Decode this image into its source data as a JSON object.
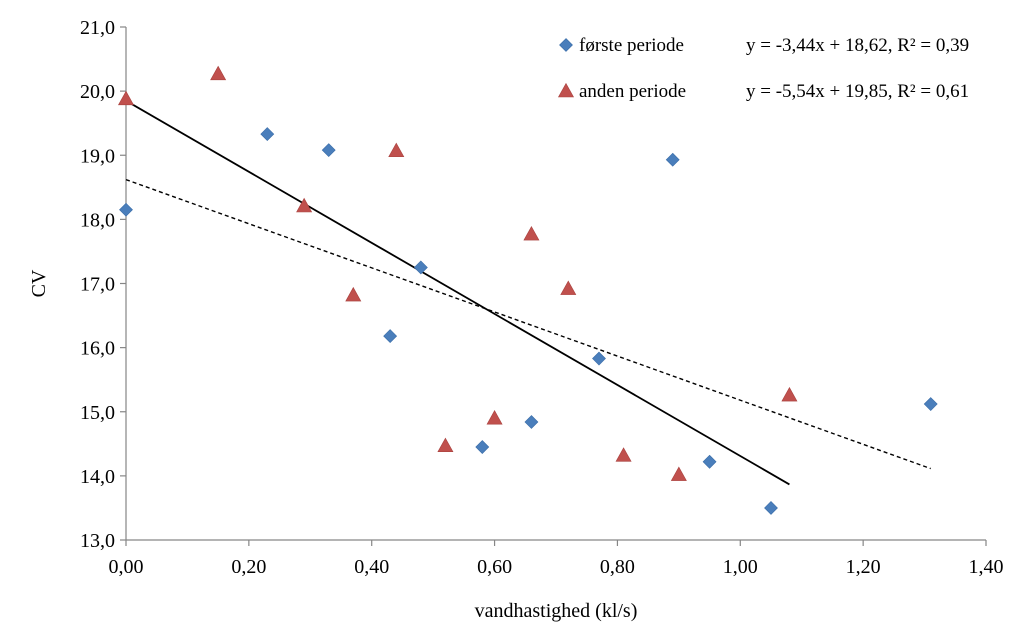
{
  "chart_data": {
    "type": "scatter",
    "xlabel": "vandhastighed (kl/s)",
    "ylabel": "CV",
    "xlim": [
      0,
      1.4
    ],
    "ylim": [
      13,
      21
    ],
    "x_ticks": [
      0,
      0.2,
      0.4,
      0.6,
      0.8,
      1.0,
      1.2,
      1.4
    ],
    "y_ticks": [
      13,
      14,
      15,
      16,
      17,
      18,
      19,
      20,
      21
    ],
    "x_tick_labels": [
      "0,00",
      "0,20",
      "0,40",
      "0,60",
      "0,80",
      "1,00",
      "1,20",
      "1,40"
    ],
    "y_tick_labels": [
      "13,0",
      "14,0",
      "15,0",
      "16,0",
      "17,0",
      "18,0",
      "19,0",
      "20,0",
      "21,0"
    ],
    "grid": false,
    "legend_position": "top-right",
    "series": [
      {
        "name": "første periode",
        "marker": "diamond",
        "color": "#4A7EBB",
        "equation": "y = -3,44x + 18,62, R² = 0,39",
        "trendline": {
          "style": "dashed",
          "slope": -3.44,
          "intercept": 18.62,
          "x_range": [
            0,
            1.31
          ]
        },
        "points": [
          [
            0.0,
            18.15
          ],
          [
            0.23,
            19.33
          ],
          [
            0.33,
            19.08
          ],
          [
            0.43,
            16.18
          ],
          [
            0.48,
            17.25
          ],
          [
            0.58,
            14.45
          ],
          [
            0.66,
            14.84
          ],
          [
            0.77,
            15.83
          ],
          [
            0.89,
            18.93
          ],
          [
            0.95,
            14.22
          ],
          [
            1.05,
            13.5
          ],
          [
            1.31,
            15.12
          ]
        ]
      },
      {
        "name": "anden periode",
        "marker": "triangle",
        "color": "#C0504D",
        "equation": "y = -5,54x + 19,85, R² = 0,61",
        "trendline": {
          "style": "solid",
          "slope": -5.54,
          "intercept": 19.85,
          "x_range": [
            0,
            1.08
          ]
        },
        "points": [
          [
            0.0,
            19.88
          ],
          [
            0.15,
            20.27
          ],
          [
            0.29,
            18.21
          ],
          [
            0.37,
            16.82
          ],
          [
            0.44,
            19.07
          ],
          [
            0.52,
            14.47
          ],
          [
            0.6,
            14.9
          ],
          [
            0.66,
            17.77
          ],
          [
            0.72,
            16.92
          ],
          [
            0.81,
            14.32
          ],
          [
            0.9,
            14.02
          ],
          [
            1.08,
            15.26
          ]
        ]
      }
    ]
  }
}
